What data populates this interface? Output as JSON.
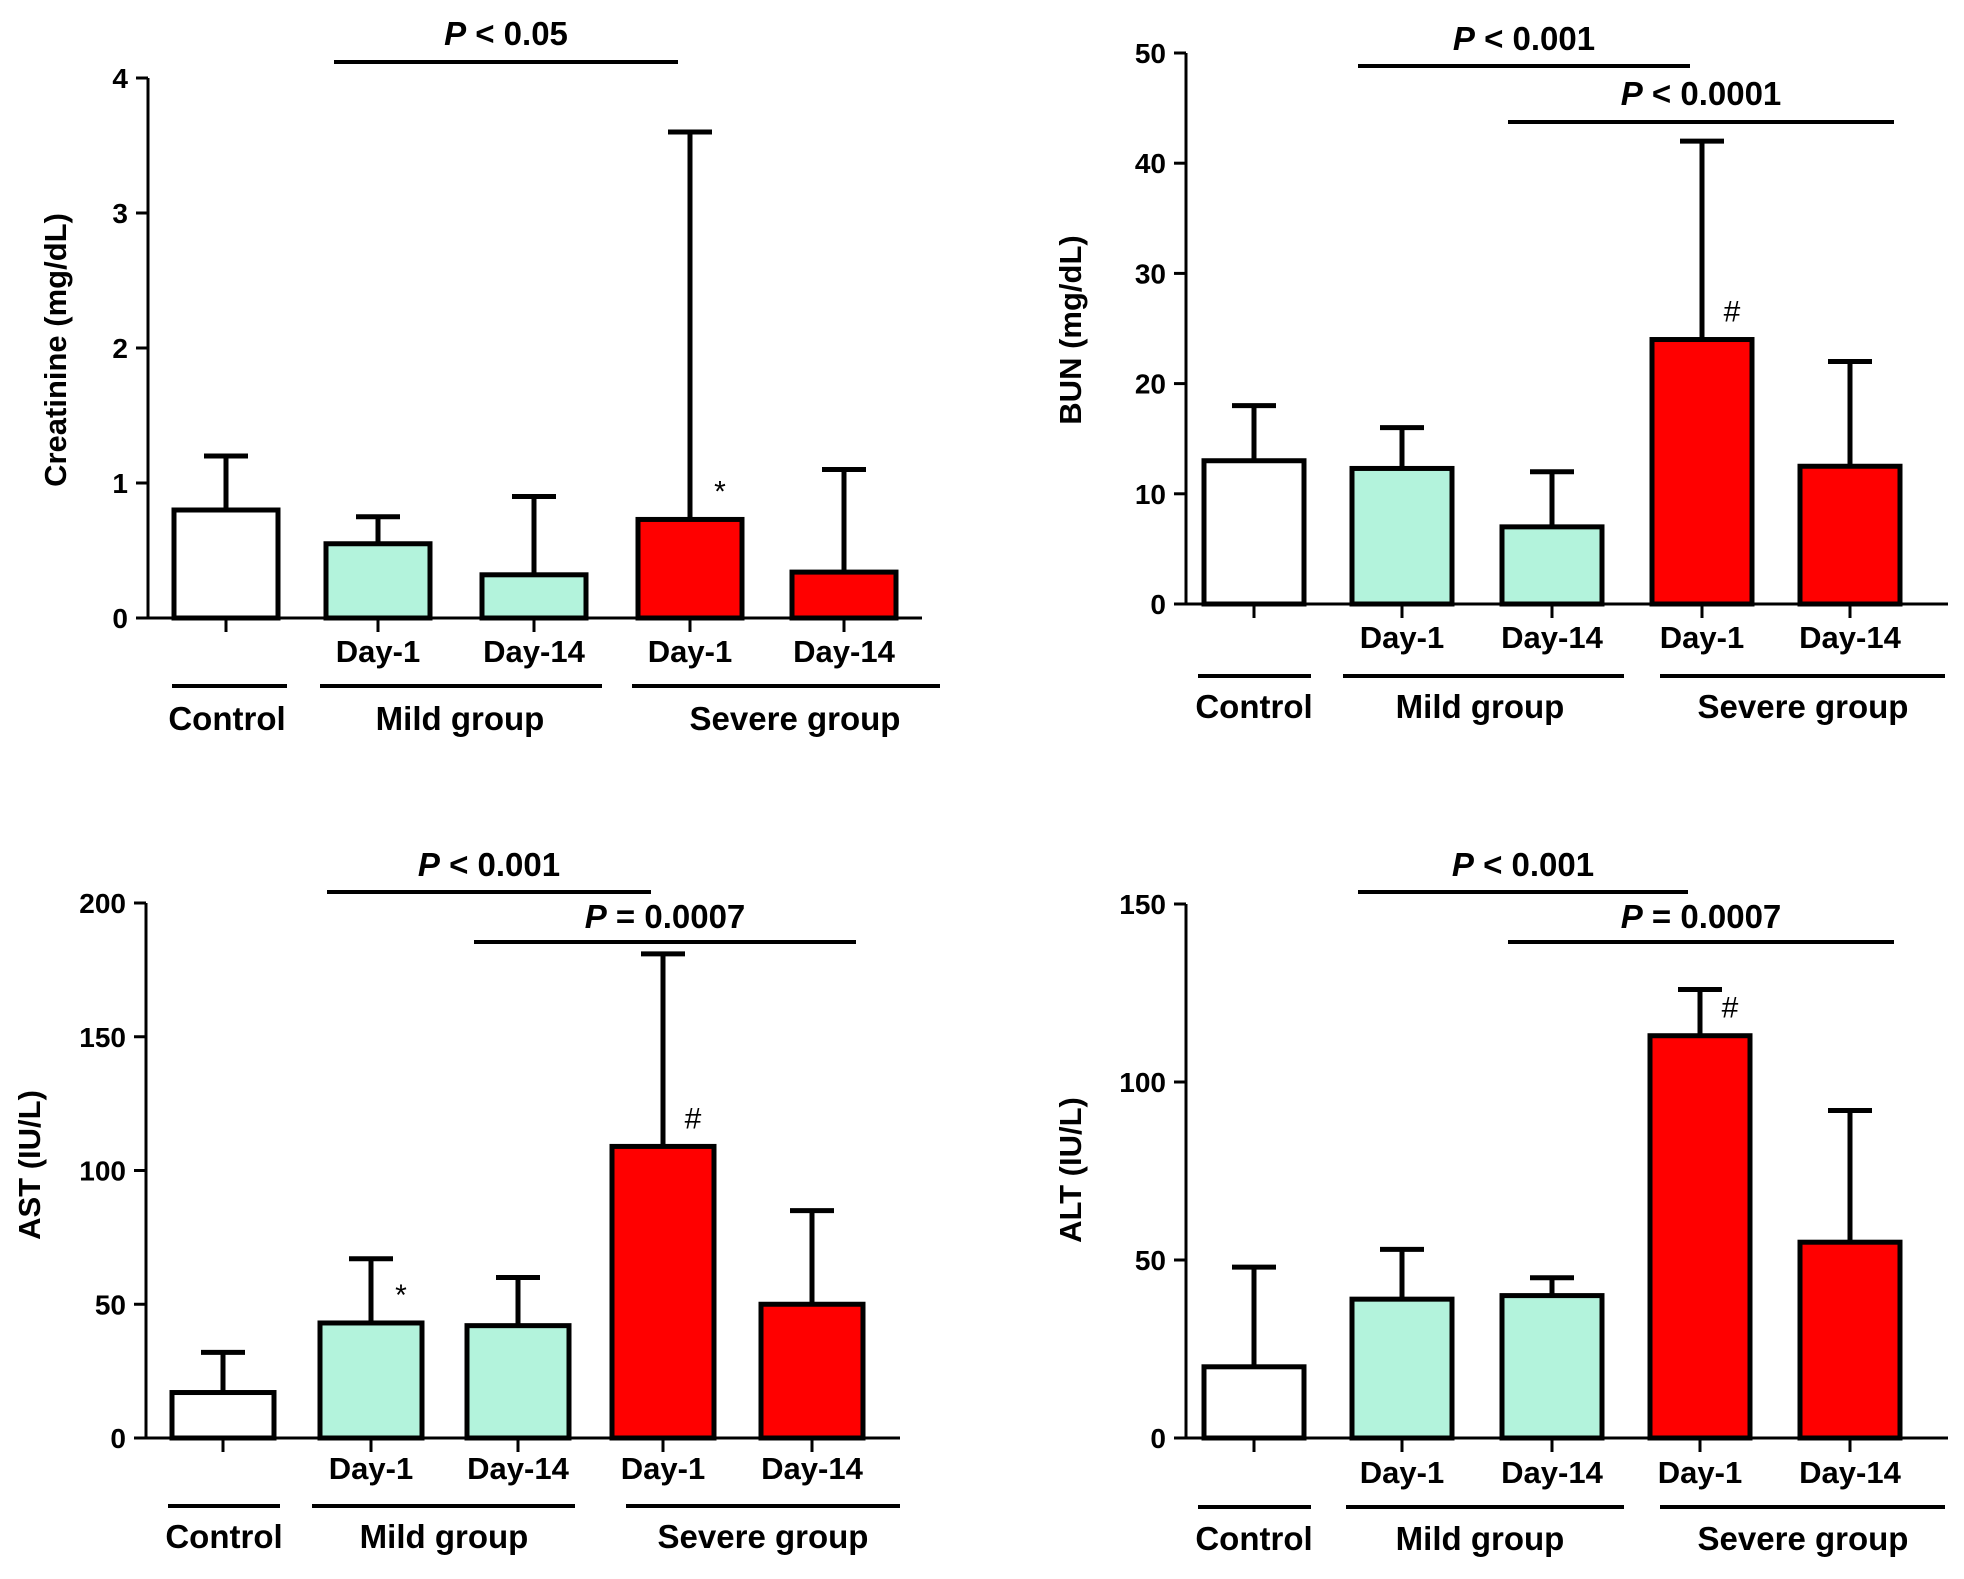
{
  "chart_data": [
    {
      "type": "bar",
      "panel": "top-left",
      "ylabel": "Creatinine (mg/dL)",
      "ylim": [
        0,
        4
      ],
      "yticks": [
        "0",
        "1",
        "2",
        "3",
        "4"
      ],
      "categories": [
        "Control",
        "Mild group Day-1",
        "Mild group Day-14",
        "Severe group Day-1",
        "Severe group Day-14"
      ],
      "tick_labels": [
        "",
        "Day-1",
        "Day-14",
        "Day-1",
        "Day-14"
      ],
      "values": [
        0.8,
        0.55,
        0.32,
        0.73,
        0.34
      ],
      "errors": [
        1.2,
        0.75,
        0.9,
        3.6,
        1.1
      ],
      "marks": [
        "",
        "",
        "",
        "*",
        ""
      ],
      "groups": [
        "Control",
        "Mild group",
        "Severe group"
      ],
      "comparisons": [
        {
          "label_italic": "P",
          "label_rest": " < 0.05",
          "from": 1,
          "to": 3
        }
      ]
    },
    {
      "type": "bar",
      "panel": "top-right",
      "ylabel": "BUN (mg/dL)",
      "ylim": [
        0,
        50
      ],
      "yticks": [
        "0",
        "10",
        "20",
        "30",
        "40",
        "50"
      ],
      "categories": [
        "Control",
        "Mild group Day-1",
        "Mild group Day-14",
        "Severe group Day-1",
        "Severe group Day-14"
      ],
      "tick_labels": [
        "",
        "Day-1",
        "Day-14",
        "Day-1",
        "Day-14"
      ],
      "values": [
        13,
        12.3,
        7,
        24,
        12.5
      ],
      "errors": [
        18,
        16,
        12,
        42,
        22
      ],
      "marks": [
        "",
        "",
        "",
        "#",
        ""
      ],
      "groups": [
        "Control",
        "Mild group",
        "Severe group"
      ],
      "comparisons": [
        {
          "label_italic": "P",
          "label_rest": " < 0.001",
          "from": 1,
          "to": 3
        },
        {
          "label_italic": "P",
          "label_rest": " < 0.0001",
          "from": 2,
          "to": 4
        }
      ]
    },
    {
      "type": "bar",
      "panel": "bottom-left",
      "ylabel": "AST (IU/L)",
      "ylim": [
        0,
        200
      ],
      "yticks": [
        "0",
        "50",
        "100",
        "150",
        "200"
      ],
      "categories": [
        "Control",
        "Mild group Day-1",
        "Mild group Day-14",
        "Severe group Day-1",
        "Severe group Day-14"
      ],
      "tick_labels": [
        "",
        "Day-1",
        "Day-14",
        "Day-1",
        "Day-14"
      ],
      "values": [
        17,
        43,
        42,
        109,
        50
      ],
      "errors": [
        32,
        67,
        60,
        181,
        85
      ],
      "marks": [
        "",
        "*",
        "",
        "#",
        ""
      ],
      "groups": [
        "Control",
        "Mild group",
        "Severe group"
      ],
      "comparisons": [
        {
          "label_italic": "P",
          "label_rest": " < 0.001",
          "from": 1,
          "to": 3
        },
        {
          "label_italic": "P",
          "label_rest": " = 0.0007",
          "from": 2,
          "to": 4
        }
      ]
    },
    {
      "type": "bar",
      "panel": "bottom-right",
      "ylabel": "ALT (IU/L)",
      "ylim": [
        0,
        150
      ],
      "yticks": [
        "0",
        "50",
        "100",
        "150"
      ],
      "categories": [
        "Control",
        "Mild group Day-1",
        "Mild group Day-14",
        "Severe group Day-1",
        "Severe group Day-14"
      ],
      "tick_labels": [
        "",
        "Day-1",
        "Day-14",
        "Day-1",
        "Day-14"
      ],
      "values": [
        20,
        39,
        40,
        113,
        55
      ],
      "errors": [
        48,
        53,
        45,
        126,
        92
      ],
      "marks": [
        "",
        "",
        "",
        "#",
        ""
      ],
      "groups": [
        "Control",
        "Mild group",
        "Severe group"
      ],
      "comparisons": [
        {
          "label_italic": "P",
          "label_rest": " < 0.001",
          "from": 1,
          "to": 3
        },
        {
          "label_italic": "P",
          "label_rest": " = 0.0007",
          "from": 2,
          "to": 4
        }
      ]
    }
  ],
  "colors": {
    "control": "#ffffff",
    "mild": "#b3f3dc",
    "severe": "#ff0000",
    "axis": "#000000"
  }
}
